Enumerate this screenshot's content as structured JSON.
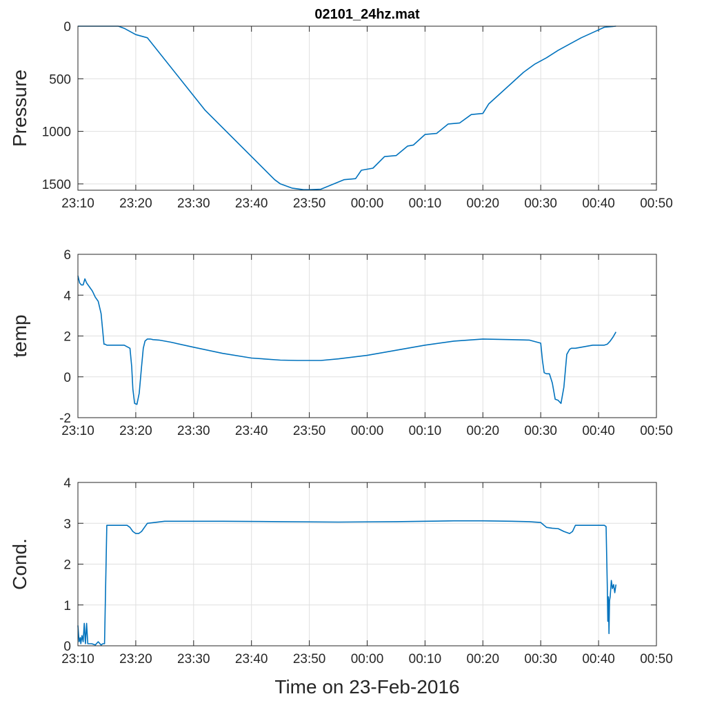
{
  "title": "02101_24hz.mat",
  "xlabel": "Time on 23-Feb-2016",
  "series_color": "#0072bd",
  "chart_data": [
    {
      "type": "line",
      "title": "02101_24hz.mat",
      "ylabel": "Pressure",
      "y_reversed": true,
      "grid": true,
      "xlim_min": [
        0,
        100
      ],
      "x_ticks_min": [
        0,
        10,
        20,
        30,
        40,
        50,
        60,
        70,
        80,
        90,
        100
      ],
      "x_tick_labels": [
        "23:10",
        "23:20",
        "23:30",
        "23:40",
        "23:50",
        "00:00",
        "00:10",
        "00:20",
        "00:30",
        "00:40",
        "00:50"
      ],
      "ylim": [
        0,
        1560
      ],
      "y_ticks": [
        0,
        500,
        1000,
        1500
      ],
      "y_tick_labels": [
        "0",
        "500",
        "1000",
        "1500"
      ],
      "series": [
        {
          "x": [
            0,
            5,
            7,
            8,
            10,
            12,
            22,
            34,
            35,
            37,
            39,
            40,
            42,
            46,
            48,
            49,
            51,
            53,
            55,
            57,
            58,
            60,
            62,
            64,
            66,
            68,
            70,
            71,
            73,
            75,
            77,
            79,
            81,
            83,
            85,
            87,
            89,
            91,
            93
          ],
          "y": [
            0,
            0,
            0,
            20,
            80,
            110,
            800,
            1460,
            1500,
            1540,
            1555,
            1555,
            1550,
            1460,
            1450,
            1370,
            1350,
            1240,
            1230,
            1140,
            1130,
            1030,
            1020,
            930,
            920,
            840,
            830,
            740,
            640,
            540,
            440,
            360,
            300,
            230,
            170,
            110,
            60,
            10,
            0
          ]
        }
      ]
    },
    {
      "type": "line",
      "ylabel": "temp",
      "grid": true,
      "xlim_min": [
        0,
        100
      ],
      "x_ticks_min": [
        0,
        10,
        20,
        30,
        40,
        50,
        60,
        70,
        80,
        90,
        100
      ],
      "x_tick_labels": [
        "23:10",
        "23:20",
        "23:30",
        "23:40",
        "23:50",
        "00:00",
        "00:10",
        "00:20",
        "00:30",
        "00:40",
        "00:50"
      ],
      "ylim": [
        -2,
        6
      ],
      "y_ticks": [
        -2,
        0,
        2,
        4,
        6
      ],
      "y_tick_labels": [
        "-2",
        "0",
        "2",
        "4",
        "6"
      ],
      "series": [
        {
          "x": [
            0,
            0.3,
            0.6,
            0.9,
            1.2,
            1.5,
            2.0,
            2.5,
            3.0,
            3.5,
            4.0,
            4.5,
            4.7,
            5.0,
            6.0,
            7.0,
            8.0,
            9.0,
            9.3,
            9.5,
            9.8,
            10.2,
            10.6,
            11.0,
            11.3,
            11.6,
            12.0,
            12.5,
            13.0,
            14.0,
            16,
            20,
            25,
            30,
            35,
            38,
            40,
            42,
            45,
            50,
            55,
            60,
            65,
            70,
            75,
            78,
            80,
            80.3,
            80.6,
            81,
            81.5,
            82,
            82.5,
            83,
            83.5,
            84,
            84.5,
            85,
            85.3,
            85.7,
            86,
            87,
            88,
            89,
            90,
            91,
            91.5,
            92,
            92.5,
            93
          ],
          "y": [
            4.95,
            4.6,
            4.5,
            4.5,
            4.8,
            4.6,
            4.4,
            4.2,
            3.9,
            3.7,
            3.1,
            1.6,
            1.6,
            1.55,
            1.55,
            1.55,
            1.55,
            1.4,
            0.5,
            -0.6,
            -1.3,
            -1.35,
            -0.8,
            0.5,
            1.4,
            1.75,
            1.85,
            1.85,
            1.82,
            1.8,
            1.7,
            1.45,
            1.15,
            0.92,
            0.82,
            0.8,
            0.8,
            0.8,
            0.88,
            1.05,
            1.3,
            1.55,
            1.75,
            1.85,
            1.82,
            1.8,
            1.65,
            0.8,
            0.2,
            0.15,
            0.15,
            -0.3,
            -1.1,
            -1.15,
            -1.3,
            -0.5,
            1.1,
            1.35,
            1.4,
            1.4,
            1.4,
            1.45,
            1.5,
            1.55,
            1.55,
            1.55,
            1.6,
            1.75,
            1.95,
            2.2
          ]
        }
      ]
    },
    {
      "type": "line",
      "ylabel": "Cond.",
      "grid": true,
      "xlim_min": [
        0,
        100
      ],
      "x_ticks_min": [
        0,
        10,
        20,
        30,
        40,
        50,
        60,
        70,
        80,
        90,
        100
      ],
      "x_tick_labels": [
        "23:10",
        "23:20",
        "23:30",
        "23:40",
        "23:50",
        "00:00",
        "00:10",
        "00:20",
        "00:30",
        "00:40",
        "00:50"
      ],
      "ylim": [
        0,
        4
      ],
      "y_ticks": [
        0,
        1,
        2,
        3,
        4
      ],
      "y_tick_labels": [
        "0",
        "1",
        "2",
        "3",
        "4"
      ],
      "series": [
        {
          "x": [
            0,
            0.2,
            0.4,
            0.5,
            0.7,
            0.9,
            1.1,
            1.3,
            1.5,
            1.7,
            1.9,
            2.1,
            2.4,
            3,
            3.5,
            4,
            4.3,
            4.6,
            5.0,
            7,
            8.5,
            9,
            9.5,
            10,
            10.5,
            11,
            12,
            15,
            25,
            35,
            45,
            55,
            60,
            65,
            70,
            75,
            78,
            80,
            81,
            82,
            83,
            84,
            85,
            85.5,
            86,
            88,
            90,
            91,
            91.3,
            91.5,
            91.6,
            91.7,
            91.8,
            91.9,
            92.0,
            92.2,
            92.4,
            92.6,
            92.8,
            93
          ],
          "y": [
            0.5,
            0.1,
            0.2,
            0.05,
            0.25,
            0.1,
            0.55,
            0.05,
            0.55,
            0.05,
            0.05,
            0.05,
            0.05,
            0.02,
            0.1,
            0.02,
            0.05,
            0.05,
            2.95,
            2.95,
            2.95,
            2.9,
            2.8,
            2.75,
            2.75,
            2.8,
            3.0,
            3.05,
            3.05,
            3.04,
            3.03,
            3.04,
            3.05,
            3.06,
            3.06,
            3.05,
            3.04,
            3.02,
            2.9,
            2.88,
            2.87,
            2.8,
            2.75,
            2.8,
            2.95,
            2.95,
            2.95,
            2.95,
            2.92,
            1.5,
            0.6,
            1.2,
            0.3,
            1.1,
            1.2,
            1.6,
            1.4,
            1.5,
            1.3,
            1.5
          ]
        }
      ]
    }
  ]
}
